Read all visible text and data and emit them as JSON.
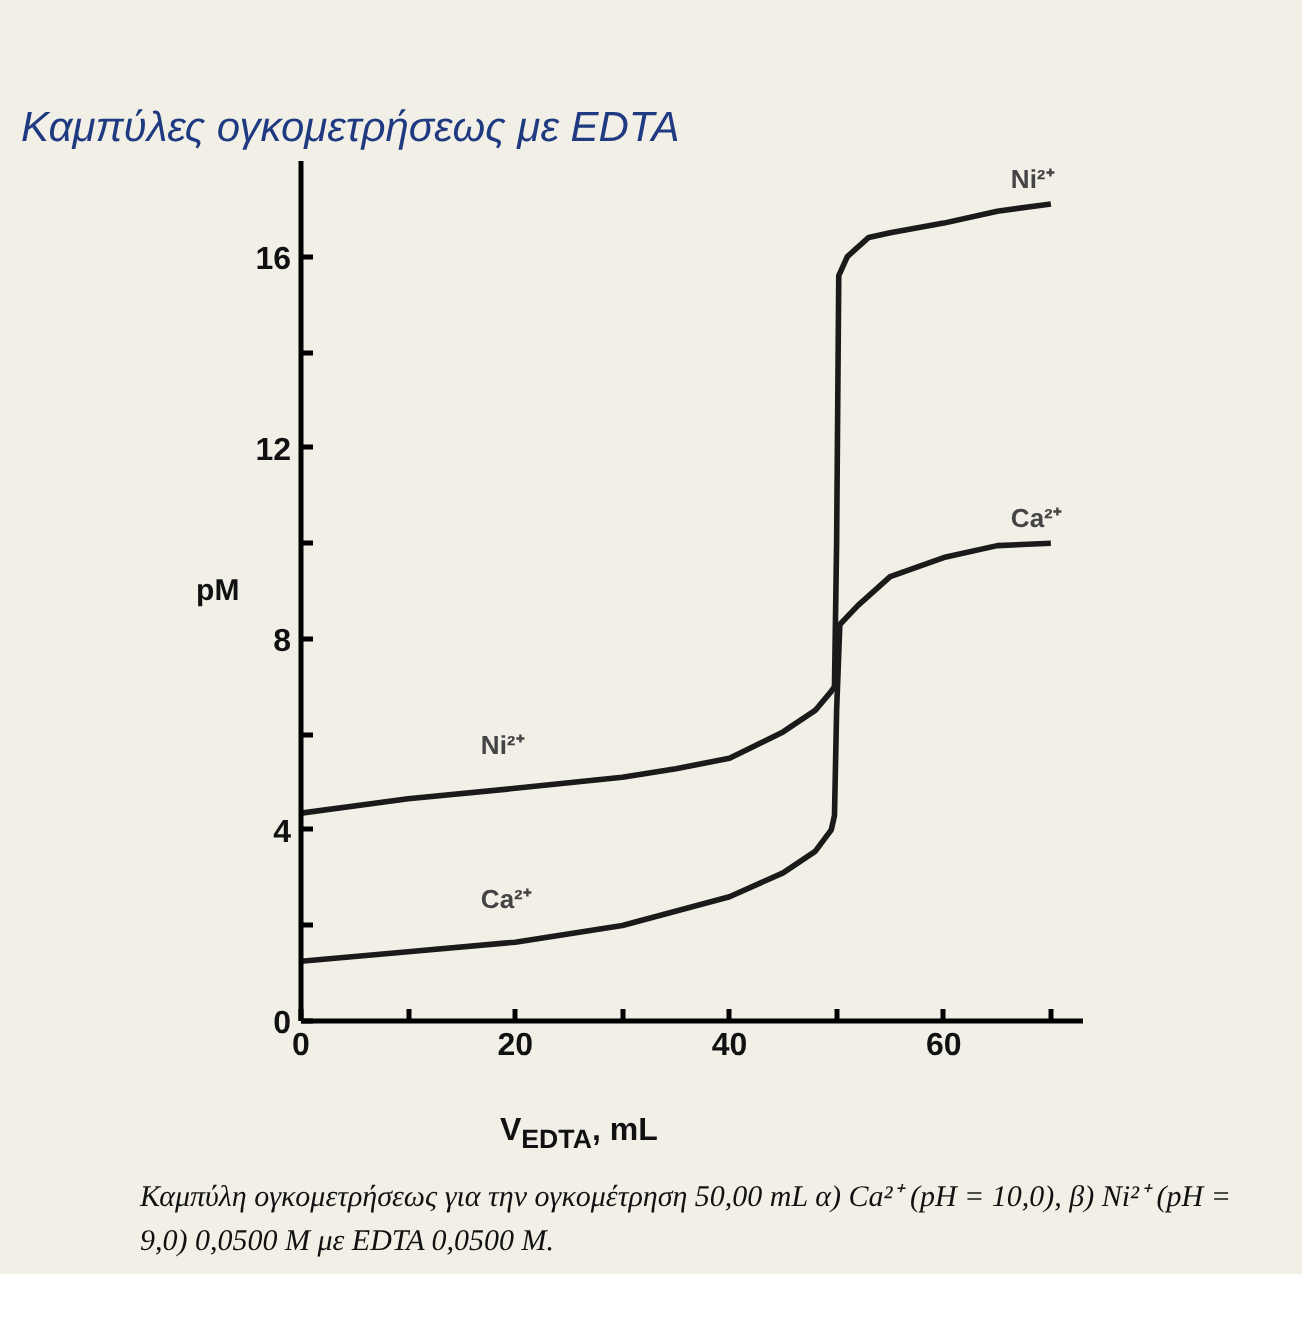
{
  "chart_data": {
    "type": "line",
    "title": "Καμπύλες ογκομετρήσεως με EDTA",
    "xlabel": "V$_{EDTA}$, mL",
    "ylabel": "pM",
    "xlim": [
      0,
      73
    ],
    "ylim": [
      0,
      18
    ],
    "xticks": [
      0,
      {
        "value": 10,
        "label": null
      },
      20,
      {
        "value": 30,
        "label": null
      },
      40,
      {
        "value": 50,
        "label": null
      },
      60,
      {
        "value": 70,
        "label": null
      }
    ],
    "yticks": [
      0,
      {
        "value": 2,
        "label": null
      },
      4,
      {
        "value": 6,
        "label": null
      },
      8,
      {
        "value": 10,
        "label": null
      },
      12,
      {
        "value": 14,
        "label": null
      },
      16
    ],
    "grid": false,
    "legend": false,
    "marker": "none",
    "line_style": "solid",
    "series": [
      {
        "name": "Ni²⁺",
        "color": "#1a1a1a",
        "x": [
          0,
          10,
          20,
          30,
          35,
          40,
          45,
          48,
          49.5,
          49.8,
          50,
          50.2,
          51,
          53,
          55,
          60,
          65,
          70
        ],
        "values": [
          4.35,
          4.65,
          4.87,
          5.1,
          5.28,
          5.5,
          6.05,
          6.5,
          6.9,
          7.0,
          10,
          15.6,
          16.0,
          16.4,
          16.5,
          16.7,
          16.95,
          17.1
        ]
      },
      {
        "name": "Ca²⁺",
        "color": "#1a1a1a",
        "x": [
          0,
          10,
          20,
          30,
          40,
          45,
          48,
          49.5,
          49.8,
          50,
          50.3,
          52,
          55,
          60,
          65,
          70
        ],
        "values": [
          1.25,
          1.45,
          1.65,
          2.0,
          2.6,
          3.1,
          3.55,
          4.0,
          4.3,
          6.5,
          8.3,
          8.7,
          9.3,
          9.7,
          9.95,
          10.0
        ]
      }
    ],
    "annotations": [
      "Καμπύλη ογκομετρήσεως για την ογκομέτρηση 50,00 mL α) Ca²⁺ (pH = 10,0), β) Ni²⁺ (pH = 9,0) 0,0500 M με EDTA 0,0500 M."
    ]
  }
}
